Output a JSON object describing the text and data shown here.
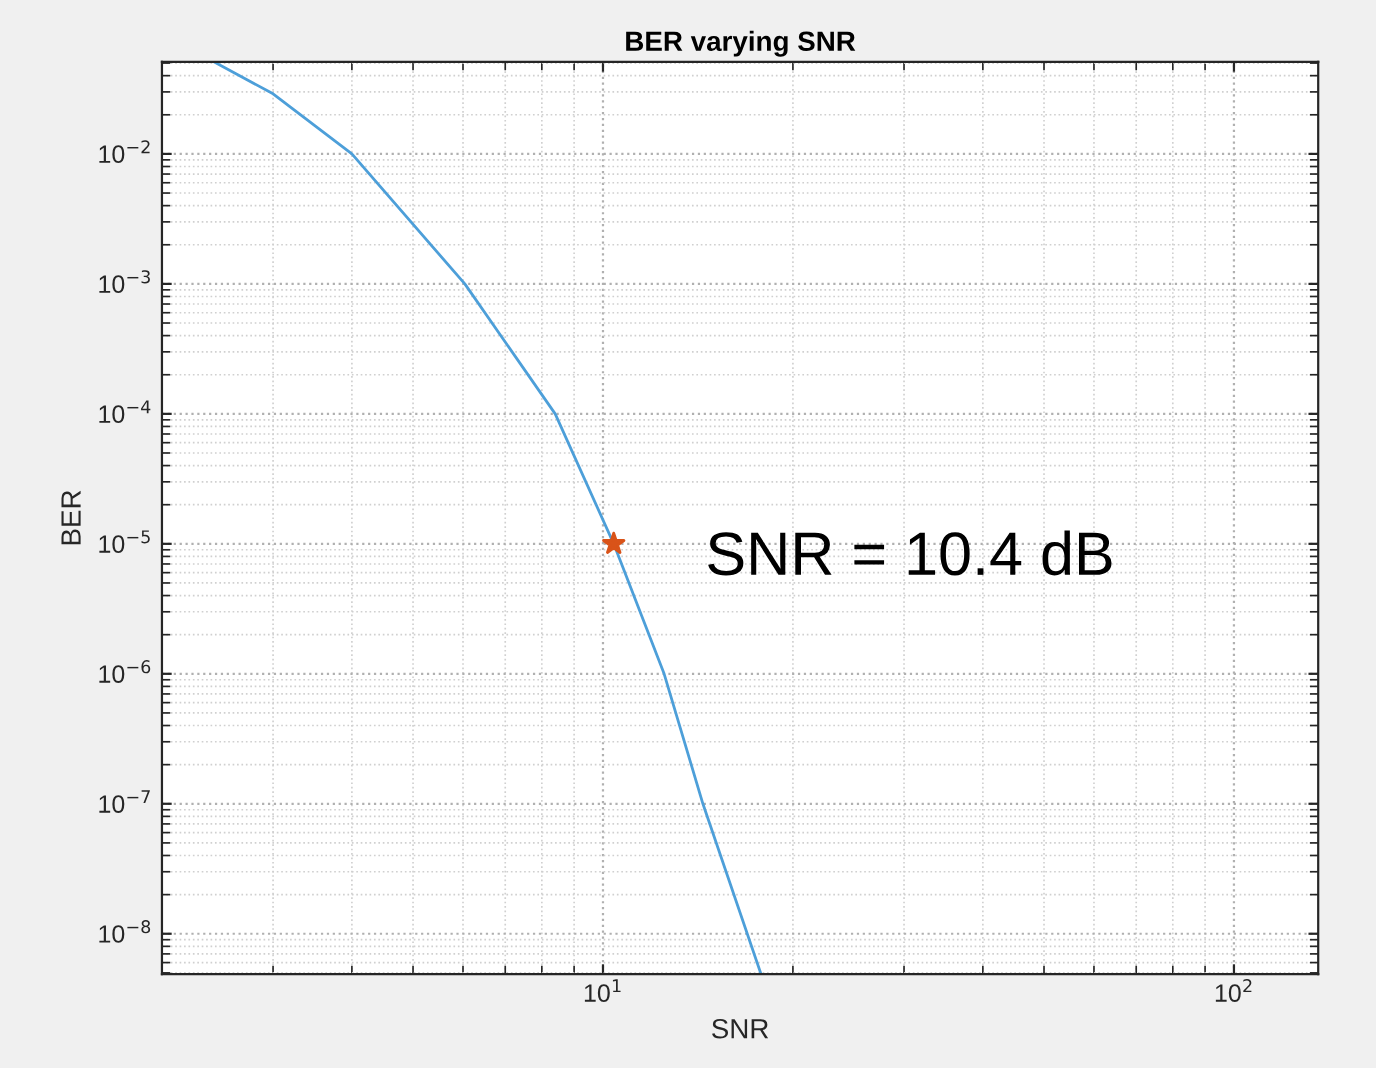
{
  "chart_data": {
    "type": "line",
    "title": "BER varying SNR",
    "xlabel": "SNR",
    "ylabel": "BER",
    "log": "xy",
    "grid": true,
    "marker": "none",
    "line_style": "solid",
    "xlim": [
      2,
      136
    ],
    "ylim": [
      4.9e-09,
      0.051
    ],
    "xticks": [
      {
        "value": 10,
        "label": "10$^{1}$"
      },
      {
        "value": 100,
        "label": "10$^{2}$"
      }
    ],
    "yticks": [
      {
        "value": 1e-08,
        "label": "10$^{−8}$"
      },
      {
        "value": 1e-07,
        "label": "10$^{−7}$"
      },
      {
        "value": 1e-06,
        "label": "10$^{−6}$"
      },
      {
        "value": 1e-05,
        "label": "10$^{−5}$"
      },
      {
        "value": 0.0001,
        "label": "10$^{−4}$"
      },
      {
        "value": 0.001,
        "label": "10$^{−3}$"
      },
      {
        "value": 0.01,
        "label": "10$^{−2}$"
      }
    ],
    "series": [
      {
        "color": "#4d9fd9",
        "x": [
          2.42,
          3.0,
          4.0,
          6.04,
          8.4,
          10.4,
          12.5,
          14.4,
          17.8
        ],
        "values": [
          0.051,
          0.029,
          0.01,
          0.001,
          0.0001,
          1e-05,
          1e-06,
          1e-07,
          4.9e-09
        ]
      },
      {
        "type": "scatter",
        "marker": "star",
        "color": "#d95319",
        "x": [
          10.4
        ],
        "values": [
          1e-05
        ]
      }
    ],
    "annotations": [
      "SNR = 10.4 dB"
    ]
  }
}
